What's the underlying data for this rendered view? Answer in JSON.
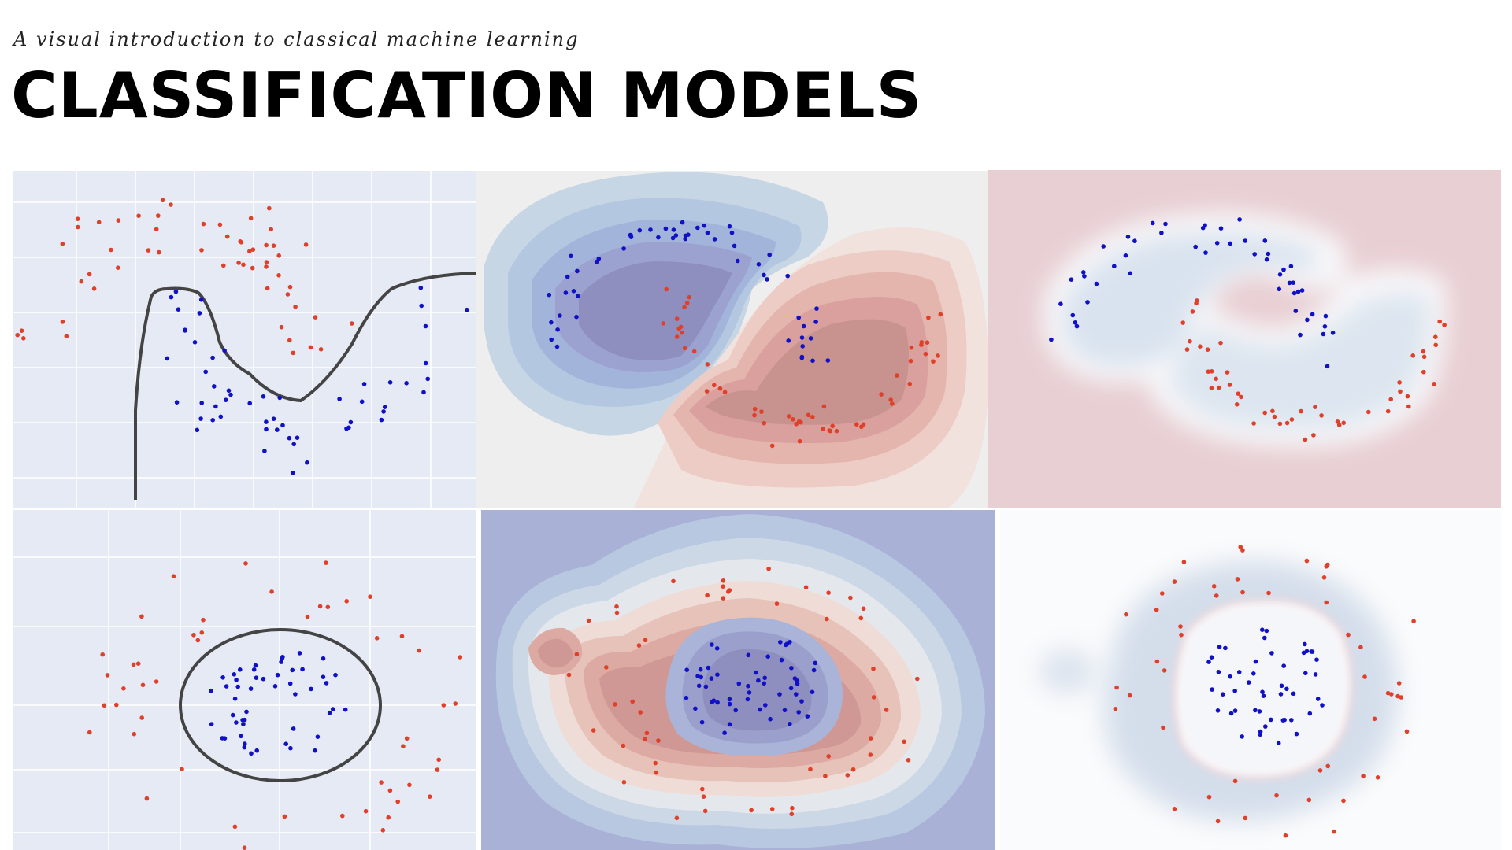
{
  "header": {
    "subtitle": "A visual introduction to classical machine learning",
    "title": "CLASSIFICATION MODELS"
  },
  "colors": {
    "class_a": "#e0402a",
    "class_b": "#1010c8",
    "grid_background": "#e5eaf4",
    "grid_line": "#ffffff",
    "boundary_line": "#444444"
  },
  "panels": [
    {
      "id": "moons-linear-boundary",
      "dataset": "moons",
      "style": "grid-with-curve-boundary"
    },
    {
      "id": "moons-contour-regions",
      "dataset": "moons",
      "style": "filled-contour"
    },
    {
      "id": "moons-soft-margin",
      "dataset": "moons",
      "style": "soft-glow-boundary"
    },
    {
      "id": "circles-ellipse-boundary",
      "dataset": "circles",
      "style": "grid-with-ellipse-boundary"
    },
    {
      "id": "circles-contour-regions",
      "dataset": "circles",
      "style": "filled-contour"
    },
    {
      "id": "circles-soft-margin",
      "dataset": "circles",
      "style": "soft-glow-boundary"
    }
  ]
}
